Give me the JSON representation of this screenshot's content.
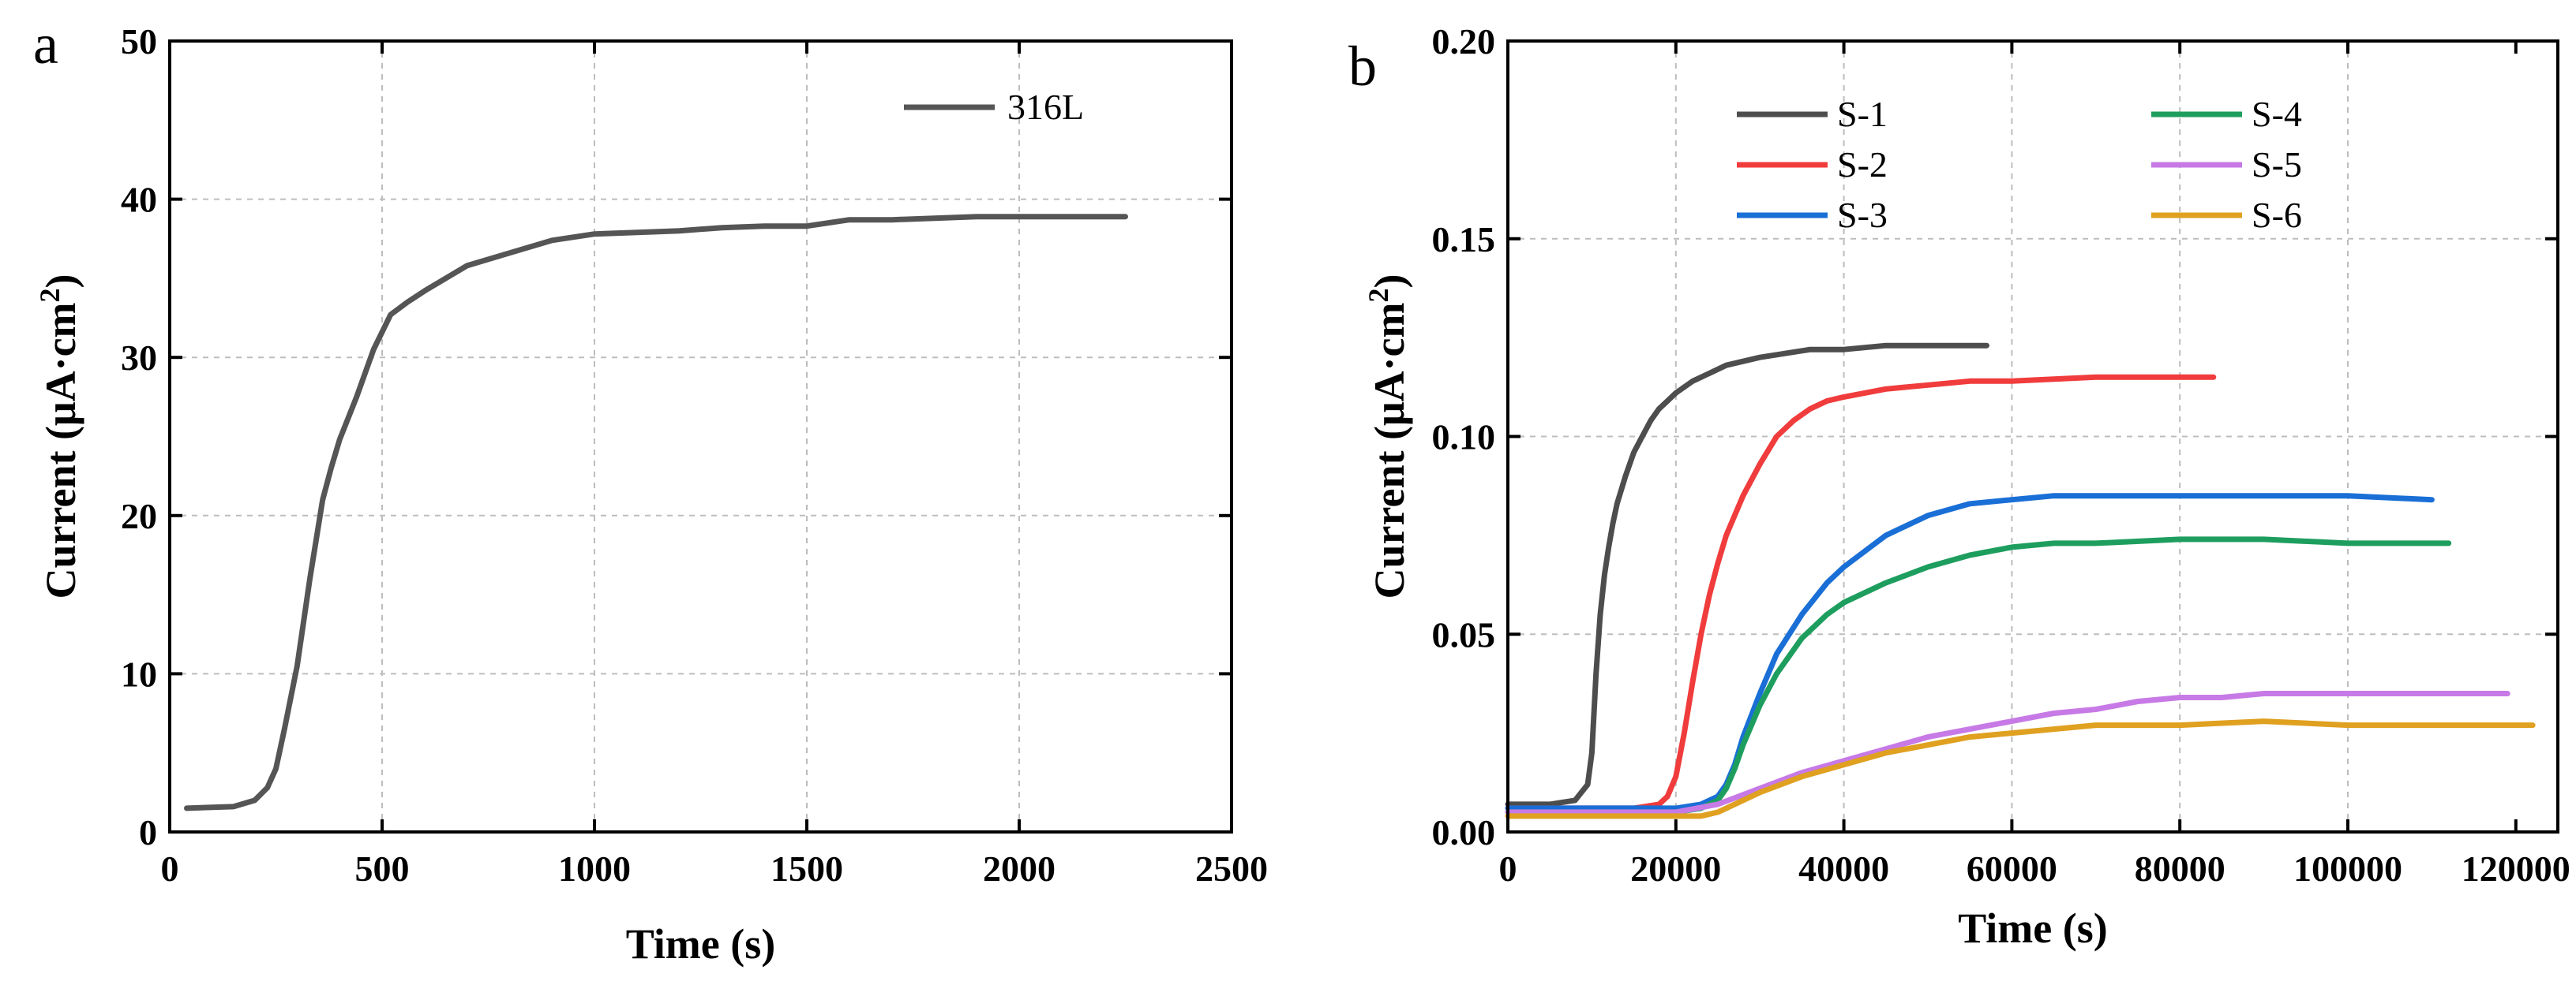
{
  "chart_data": [
    {
      "type": "line",
      "panel_label": "a",
      "xlabel": "Time (s)",
      "ylabel": "Current (μA·cm²)",
      "ylabel_main": "Current (μA·cm",
      "ylabel_sup": "2",
      "ylabel_close": ")",
      "xlim": [
        0,
        2500
      ],
      "ylim": [
        0,
        50
      ],
      "xticks": [
        0,
        500,
        1000,
        1500,
        2000,
        2500
      ],
      "yticks": [
        0,
        10,
        20,
        30,
        40,
        50
      ],
      "xtick_labels": [
        "0",
        "500",
        "1000",
        "1500",
        "2000",
        "2500"
      ],
      "ytick_labels": [
        "0",
        "10",
        "20",
        "30",
        "40",
        "50"
      ],
      "grid": true,
      "legend_position": "top-right",
      "series": [
        {
          "name": "316L",
          "color": "#555555",
          "x": [
            40,
            150,
            200,
            230,
            250,
            270,
            300,
            330,
            360,
            380,
            400,
            440,
            480,
            520,
            560,
            600,
            650,
            700,
            750,
            800,
            900,
            1000,
            1100,
            1200,
            1300,
            1400,
            1500,
            1550,
            1600,
            1700,
            1800,
            1900,
            2000,
            2100,
            2200,
            2250
          ],
          "y": [
            1.5,
            1.6,
            2.0,
            2.8,
            4.0,
            6.5,
            10.5,
            16.0,
            21.0,
            23.0,
            24.8,
            27.5,
            30.5,
            32.7,
            33.5,
            34.2,
            35.0,
            35.8,
            36.2,
            36.6,
            37.4,
            37.8,
            37.9,
            38.0,
            38.2,
            38.3,
            38.3,
            38.5,
            38.7,
            38.7,
            38.8,
            38.9,
            38.9,
            38.9,
            38.9,
            38.9
          ]
        }
      ]
    },
    {
      "type": "line",
      "panel_label": "b",
      "xlabel": "Time (s)",
      "ylabel": "Current (μA·cm²)",
      "ylabel_main": "Current (μA·cm",
      "ylabel_sup": "2",
      "ylabel_close": ")",
      "xlim": [
        0,
        125000
      ],
      "ylim": [
        0,
        0.2
      ],
      "xticks": [
        0,
        20000,
        40000,
        60000,
        80000,
        100000,
        120000
      ],
      "yticks": [
        0,
        0.05,
        0.1,
        0.15,
        0.2
      ],
      "xtick_labels": [
        "0",
        "20000",
        "40000",
        "60000",
        "80000",
        "100000",
        "120000"
      ],
      "ytick_labels": [
        "0.00",
        "0.05",
        "0.10",
        "0.15",
        "0.20"
      ],
      "grid": true,
      "legend_position": "top",
      "series": [
        {
          "name": "S-1",
          "color": "#4d4d4d",
          "x": [
            0,
            5000,
            8000,
            9500,
            10000,
            10500,
            11000,
            11500,
            12000,
            12500,
            13000,
            14000,
            15000,
            16000,
            17000,
            18000,
            19000,
            20000,
            22000,
            24000,
            26000,
            28000,
            30000,
            33000,
            36000,
            40000,
            45000,
            50000,
            57000
          ],
          "y": [
            0.007,
            0.007,
            0.008,
            0.012,
            0.02,
            0.04,
            0.055,
            0.065,
            0.072,
            0.078,
            0.083,
            0.09,
            0.096,
            0.1,
            0.104,
            0.107,
            0.109,
            0.111,
            0.114,
            0.116,
            0.118,
            0.119,
            0.12,
            0.121,
            0.122,
            0.122,
            0.123,
            0.123,
            0.123
          ]
        },
        {
          "name": "S-2",
          "color": "#f03c3c",
          "x": [
            0,
            15000,
            18000,
            19000,
            20000,
            21000,
            22000,
            23000,
            24000,
            25000,
            26000,
            28000,
            30000,
            32000,
            34000,
            36000,
            38000,
            40000,
            45000,
            50000,
            55000,
            60000,
            70000,
            80000,
            84000
          ],
          "y": [
            0.006,
            0.006,
            0.007,
            0.009,
            0.014,
            0.025,
            0.038,
            0.05,
            0.06,
            0.068,
            0.075,
            0.085,
            0.093,
            0.1,
            0.104,
            0.107,
            0.109,
            0.11,
            0.112,
            0.113,
            0.114,
            0.114,
            0.115,
            0.115,
            0.115
          ]
        },
        {
          "name": "S-3",
          "color": "#1a6fd6",
          "x": [
            0,
            20000,
            23000,
            25000,
            26000,
            27000,
            28000,
            30000,
            32000,
            35000,
            38000,
            40000,
            45000,
            50000,
            55000,
            60000,
            65000,
            70000,
            80000,
            90000,
            100000,
            110000
          ],
          "y": [
            0.006,
            0.006,
            0.007,
            0.009,
            0.012,
            0.017,
            0.024,
            0.035,
            0.045,
            0.055,
            0.063,
            0.067,
            0.075,
            0.08,
            0.083,
            0.084,
            0.085,
            0.085,
            0.085,
            0.085,
            0.085,
            0.084
          ]
        },
        {
          "name": "S-4",
          "color": "#1e9e5e",
          "x": [
            0,
            20000,
            23000,
            25000,
            26000,
            27000,
            28000,
            30000,
            32000,
            35000,
            38000,
            40000,
            45000,
            50000,
            55000,
            60000,
            65000,
            70000,
            80000,
            90000,
            100000,
            112000
          ],
          "y": [
            0.005,
            0.005,
            0.006,
            0.008,
            0.011,
            0.016,
            0.022,
            0.032,
            0.04,
            0.049,
            0.055,
            0.058,
            0.063,
            0.067,
            0.07,
            0.072,
            0.073,
            0.073,
            0.074,
            0.074,
            0.073,
            0.073
          ]
        },
        {
          "name": "S-5",
          "color": "#c77ae6",
          "x": [
            0,
            20000,
            25000,
            30000,
            35000,
            40000,
            45000,
            50000,
            55000,
            60000,
            65000,
            70000,
            75000,
            80000,
            85000,
            90000,
            100000,
            110000,
            119000
          ],
          "y": [
            0.005,
            0.005,
            0.007,
            0.011,
            0.015,
            0.018,
            0.021,
            0.024,
            0.026,
            0.028,
            0.03,
            0.031,
            0.033,
            0.034,
            0.034,
            0.035,
            0.035,
            0.035,
            0.035
          ]
        },
        {
          "name": "S-6",
          "color": "#e0a020",
          "x": [
            0,
            20000,
            23000,
            25000,
            27000,
            30000,
            35000,
            40000,
            45000,
            50000,
            55000,
            60000,
            65000,
            70000,
            80000,
            90000,
            100000,
            110000,
            122000
          ],
          "y": [
            0.004,
            0.004,
            0.004,
            0.005,
            0.007,
            0.01,
            0.014,
            0.017,
            0.02,
            0.022,
            0.024,
            0.025,
            0.026,
            0.027,
            0.027,
            0.028,
            0.027,
            0.027,
            0.027
          ]
        }
      ]
    }
  ]
}
